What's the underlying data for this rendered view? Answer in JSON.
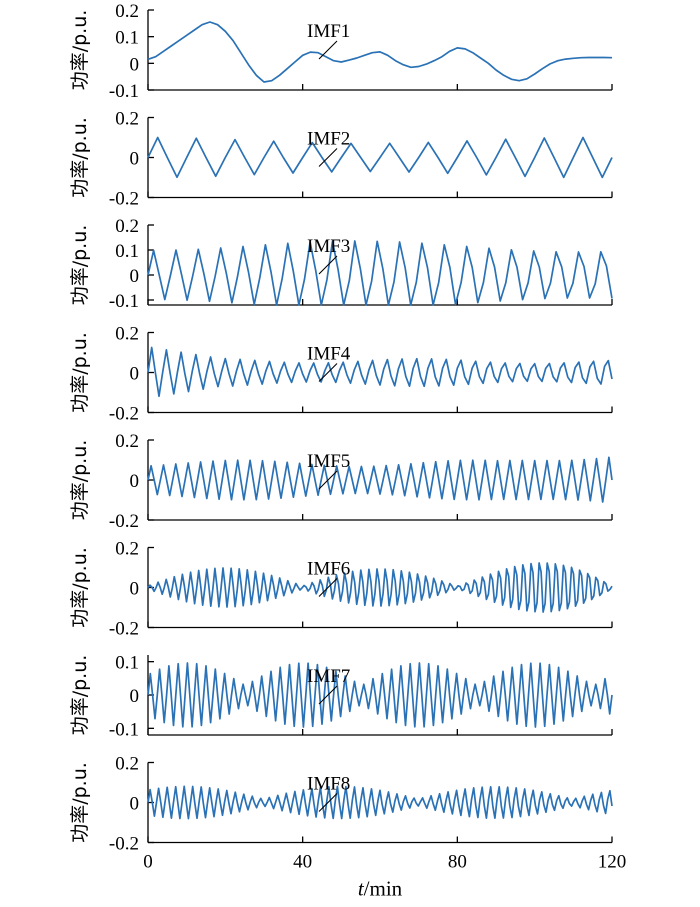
{
  "chart_data": {
    "type": "line",
    "xlabel_italic": "t",
    "xlabel_rest": "/min",
    "x_ticks": [
      "0",
      "40",
      "80",
      "120"
    ],
    "xlim": [
      0,
      120
    ],
    "line_color": "#2a72b5",
    "panels": [
      {
        "name": "IMF1",
        "ylabel": "功率/p.u.",
        "ylim": [
          -0.1,
          0.2
        ],
        "y_ticks": [
          "0.2",
          "0.1",
          "0",
          "-0.1"
        ],
        "x": [
          0,
          2,
          4,
          6,
          8,
          10,
          12,
          14,
          16,
          18,
          20,
          22,
          24,
          26,
          28,
          30,
          32,
          34,
          36,
          38,
          40,
          42,
          44,
          46,
          48,
          50,
          52,
          54,
          56,
          58,
          60,
          62,
          64,
          66,
          68,
          70,
          72,
          74,
          76,
          78,
          80,
          82,
          84,
          86,
          88,
          90,
          92,
          94,
          96,
          98,
          100,
          102,
          104,
          106,
          108,
          110,
          112,
          114,
          116,
          118,
          120
        ],
        "values": [
          0.015,
          0.025,
          0.045,
          0.065,
          0.085,
          0.105,
          0.125,
          0.145,
          0.155,
          0.145,
          0.12,
          0.085,
          0.04,
          -0.005,
          -0.045,
          -0.07,
          -0.065,
          -0.045,
          -0.02,
          0.005,
          0.03,
          0.042,
          0.04,
          0.025,
          0.01,
          0.005,
          0.012,
          0.02,
          0.03,
          0.04,
          0.043,
          0.03,
          0.01,
          -0.005,
          -0.015,
          -0.012,
          -0.003,
          0.01,
          0.025,
          0.045,
          0.058,
          0.054,
          0.04,
          0.02,
          0.0,
          -0.025,
          -0.045,
          -0.06,
          -0.065,
          -0.058,
          -0.04,
          -0.02,
          -0.002,
          0.01,
          0.016,
          0.019,
          0.021,
          0.022,
          0.022,
          0.022,
          0.021
        ]
      },
      {
        "name": "IMF2",
        "ylabel": "功率/p.u.",
        "ylim": [
          -0.2,
          0.2
        ],
        "y_ticks": [
          "0.2",
          "0",
          "-0.2"
        ],
        "period": 10,
        "amplitude": 0.1
      },
      {
        "name": "IMF3",
        "ylabel": "功率/p.u.",
        "ylim": [
          -0.12,
          0.2
        ],
        "y_ticks": [
          "0.2",
          "0.1",
          "0",
          "-0.1"
        ],
        "period": 5.8,
        "amplitude": 0.115
      },
      {
        "name": "IMF4",
        "ylabel": "功率/p.u.",
        "ylim": [
          -0.2,
          0.2
        ],
        "y_ticks": [
          "0.2",
          "0",
          "-0.2"
        ],
        "period": 3.8,
        "amplitude": 0.08
      },
      {
        "name": "IMF5",
        "ylabel": "功率/p.u.",
        "ylim": [
          -0.2,
          0.2
        ],
        "y_ticks": [
          "0.2",
          "0",
          "-0.2"
        ],
        "period": 3.2,
        "amplitude": 0.09
      },
      {
        "name": "IMF6",
        "ylabel": "功率/p.u.",
        "ylim": [
          -0.2,
          0.2
        ],
        "y_ticks": [
          "0.2",
          "0",
          "-0.2"
        ],
        "period": 2.1,
        "amplitude": 0.1
      },
      {
        "name": "IMF7",
        "ylabel": "功率/p.u.",
        "ylim": [
          -0.12,
          0.12
        ],
        "y_ticks": [
          "0.1",
          "0",
          "-0.1"
        ],
        "period": 2.4,
        "amplitude": 0.08
      },
      {
        "name": "IMF8",
        "ylabel": "功率/p.u.",
        "ylim": [
          -0.2,
          0.2
        ],
        "y_ticks": [
          "0.2",
          "0",
          "-0.2"
        ],
        "period": 2.2,
        "amplitude": 0.07
      }
    ]
  }
}
